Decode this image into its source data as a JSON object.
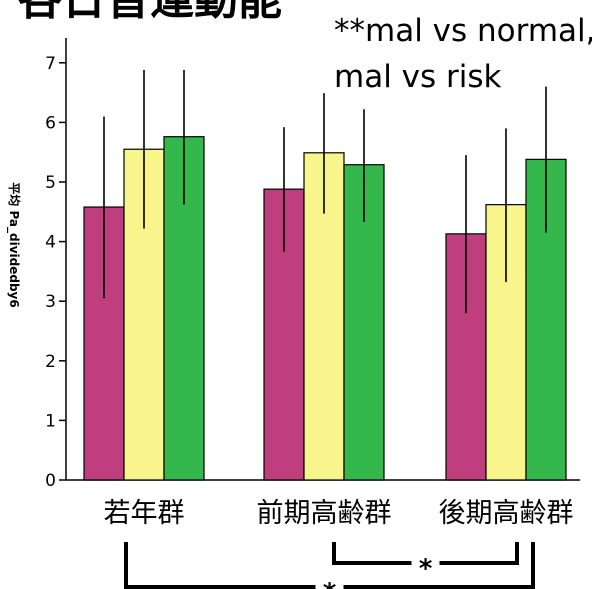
{
  "title": "各日普運動能",
  "note": [
    "**mal vs normal,",
    "mal vs risk"
  ],
  "colors": {
    "series1": "#bf3f7e",
    "series2": "#f7f58c",
    "series3": "#35b84b",
    "axis": "#000000",
    "errorbar": "#000000"
  },
  "significance": [
    {
      "from": "前期高齢群",
      "to": "後期高齢群",
      "label": "*"
    },
    {
      "from": "若年群",
      "to": "後期高齢群",
      "label": "*"
    }
  ],
  "chart_data": {
    "type": "bar",
    "categories": [
      "若年群",
      "前期高齢群",
      "後期高齢群"
    ],
    "series": [
      {
        "values": [
          4.58,
          4.88,
          4.13
        ],
        "error_low": [
          3.05,
          3.83,
          2.8
        ],
        "error_high": [
          6.1,
          5.92,
          5.45
        ]
      },
      {
        "values": [
          5.55,
          5.49,
          4.62
        ],
        "error_low": [
          4.22,
          4.47,
          3.32
        ],
        "error_high": [
          6.88,
          6.49,
          5.9
        ]
      },
      {
        "values": [
          5.76,
          5.29,
          5.38
        ],
        "error_low": [
          4.62,
          4.33,
          4.15
        ],
        "error_high": [
          6.88,
          6.22,
          6.6
        ]
      }
    ],
    "ylabel": "平均 Pa_dividedby6",
    "xlabel": "",
    "yticks": [
      0,
      1,
      2,
      3,
      4,
      5,
      6,
      7
    ],
    "ylim": [
      0,
      7.5
    ],
    "grid": false,
    "legend": "none"
  }
}
